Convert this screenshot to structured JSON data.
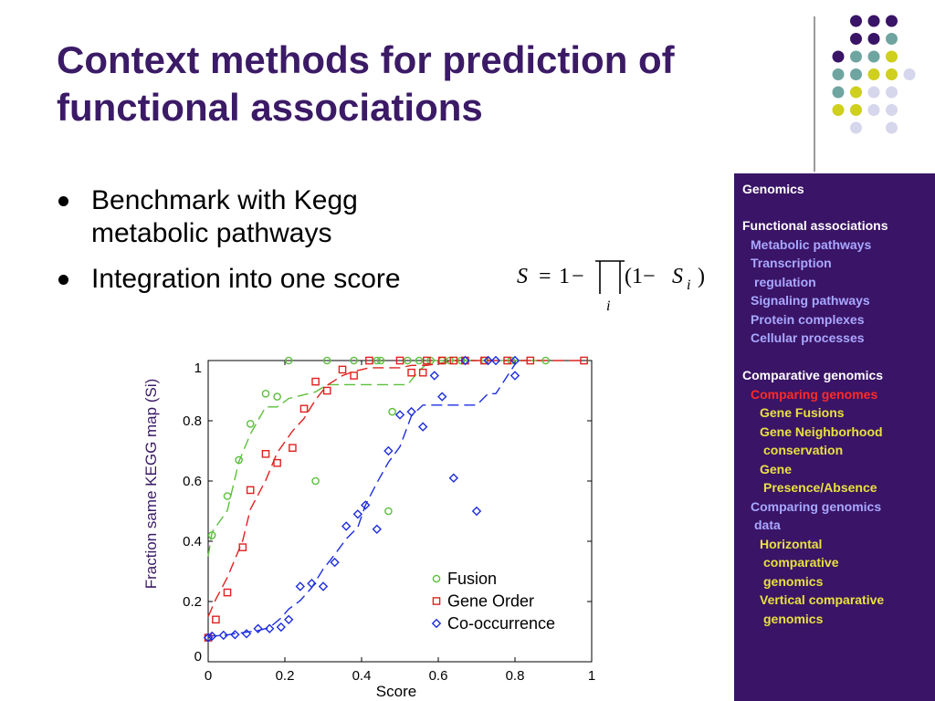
{
  "slide": {
    "title_line1": "Context methods for prediction of",
    "title_line2": "functional associations"
  },
  "bullets": [
    "Benchmark with Kegg metabolic pathways",
    "Integration into one score"
  ],
  "formula": {
    "S": "S",
    "eq": "=",
    "one": "1",
    "minus": "−",
    "prod_index": "i",
    "paren_open": "(1−",
    "Si": "S",
    "Si_sub": "i",
    "paren_close": ")"
  },
  "sidebar": {
    "genomics": "Genomics",
    "functional_associations": "Functional associations",
    "metabolic_pathways": "Metabolic pathways",
    "transcription": "Transcription",
    "regulation": "regulation",
    "signaling_pathways": "Signaling pathways",
    "protein_complexes": "Protein complexes",
    "cellular_processes": "Cellular processes",
    "comparative_genomics": "Comparative genomics",
    "comparing_genomes": "Comparing genomes",
    "gene_fusions": "Gene Fusions",
    "gene_neighborhood": "Gene Neighborhood",
    "conservation": "conservation",
    "gene": "Gene",
    "presence_absence": "Presence/Absence",
    "comparing_genomics": "Comparing genomics",
    "data": "data",
    "horizontal": "Horizontal",
    "comparative": "comparative",
    "genomics_h": "genomics",
    "vertical_comparative": "Vertical comparative",
    "genomics_v": "genomics"
  },
  "colors": {
    "title": "#3b1a66",
    "sidebar_bg": "#3a1466",
    "dot_purple": "#3a1466",
    "dot_teal": "#6fa5a0",
    "dot_yellow": "#cfcf1e",
    "dot_lavender": "#d6d6ec",
    "fusion": "#5cbf3c",
    "gene_order": "#e02020",
    "co_occurrence": "#1e2ee0"
  },
  "chart_data": {
    "type": "scatter",
    "xlabel": "Score",
    "ylabel": "Fraction same KEGG map (Si)",
    "xlim": [
      0,
      1
    ],
    "ylim": [
      0,
      1
    ],
    "x_ticks": [
      "0",
      "0.2",
      "0.4",
      "0.6",
      "0.8",
      "1"
    ],
    "y_ticks": [
      "0",
      "0.2",
      "0.4",
      "0.6",
      "0.8",
      "1"
    ],
    "legend_position": "bottom-right",
    "series": [
      {
        "name": "Fusion",
        "marker": "circle",
        "points": [
          [
            0.0,
            0.08
          ],
          [
            0.01,
            0.42
          ],
          [
            0.05,
            0.55
          ],
          [
            0.08,
            0.67
          ],
          [
            0.11,
            0.79
          ],
          [
            0.15,
            0.89
          ],
          [
            0.18,
            0.88
          ],
          [
            0.21,
            1.0
          ],
          [
            0.28,
            0.6
          ],
          [
            0.31,
            1.0
          ],
          [
            0.38,
            1.0
          ],
          [
            0.44,
            1.0
          ],
          [
            0.45,
            1.0
          ],
          [
            0.47,
            0.5
          ],
          [
            0.48,
            0.83
          ],
          [
            0.52,
            1.0
          ],
          [
            0.55,
            1.0
          ],
          [
            0.58,
            1.0
          ],
          [
            0.61,
            1.0
          ],
          [
            0.63,
            1.0
          ],
          [
            0.66,
            1.0
          ],
          [
            0.72,
            1.0
          ],
          [
            0.79,
            1.0
          ],
          [
            0.88,
            1.0
          ]
        ]
      },
      {
        "name": "Gene Order",
        "marker": "square",
        "points": [
          [
            0.0,
            0.08
          ],
          [
            0.02,
            0.14
          ],
          [
            0.05,
            0.23
          ],
          [
            0.09,
            0.38
          ],
          [
            0.11,
            0.57
          ],
          [
            0.15,
            0.69
          ],
          [
            0.18,
            0.66
          ],
          [
            0.22,
            0.71
          ],
          [
            0.25,
            0.84
          ],
          [
            0.28,
            0.93
          ],
          [
            0.31,
            0.9
          ],
          [
            0.35,
            0.97
          ],
          [
            0.38,
            0.95
          ],
          [
            0.42,
            1.0
          ],
          [
            0.5,
            1.0
          ],
          [
            0.53,
            0.96
          ],
          [
            0.56,
            0.96
          ],
          [
            0.57,
            1.0
          ],
          [
            0.61,
            1.0
          ],
          [
            0.64,
            1.0
          ],
          [
            0.67,
            1.0
          ],
          [
            0.72,
            1.0
          ],
          [
            0.78,
            1.0
          ],
          [
            0.84,
            1.0
          ],
          [
            0.98,
            1.0
          ]
        ]
      },
      {
        "name": "Co-occurrence",
        "marker": "diamond",
        "points": [
          [
            0.0,
            0.08
          ],
          [
            0.01,
            0.085
          ],
          [
            0.04,
            0.088
          ],
          [
            0.07,
            0.09
          ],
          [
            0.1,
            0.093
          ],
          [
            0.13,
            0.11
          ],
          [
            0.16,
            0.11
          ],
          [
            0.19,
            0.115
          ],
          [
            0.21,
            0.14
          ],
          [
            0.24,
            0.25
          ],
          [
            0.27,
            0.26
          ],
          [
            0.3,
            0.25
          ],
          [
            0.33,
            0.33
          ],
          [
            0.36,
            0.45
          ],
          [
            0.39,
            0.49
          ],
          [
            0.41,
            0.52
          ],
          [
            0.44,
            0.44
          ],
          [
            0.47,
            0.7
          ],
          [
            0.5,
            0.82
          ],
          [
            0.53,
            0.83
          ],
          [
            0.56,
            0.78
          ],
          [
            0.59,
            0.95
          ],
          [
            0.61,
            0.88
          ],
          [
            0.64,
            0.61
          ],
          [
            0.67,
            1.0
          ],
          [
            0.7,
            0.5
          ],
          [
            0.73,
            1.0
          ],
          [
            0.75,
            1.0
          ],
          [
            0.8,
            0.95
          ],
          [
            0.8,
            1.0
          ]
        ]
      }
    ]
  }
}
